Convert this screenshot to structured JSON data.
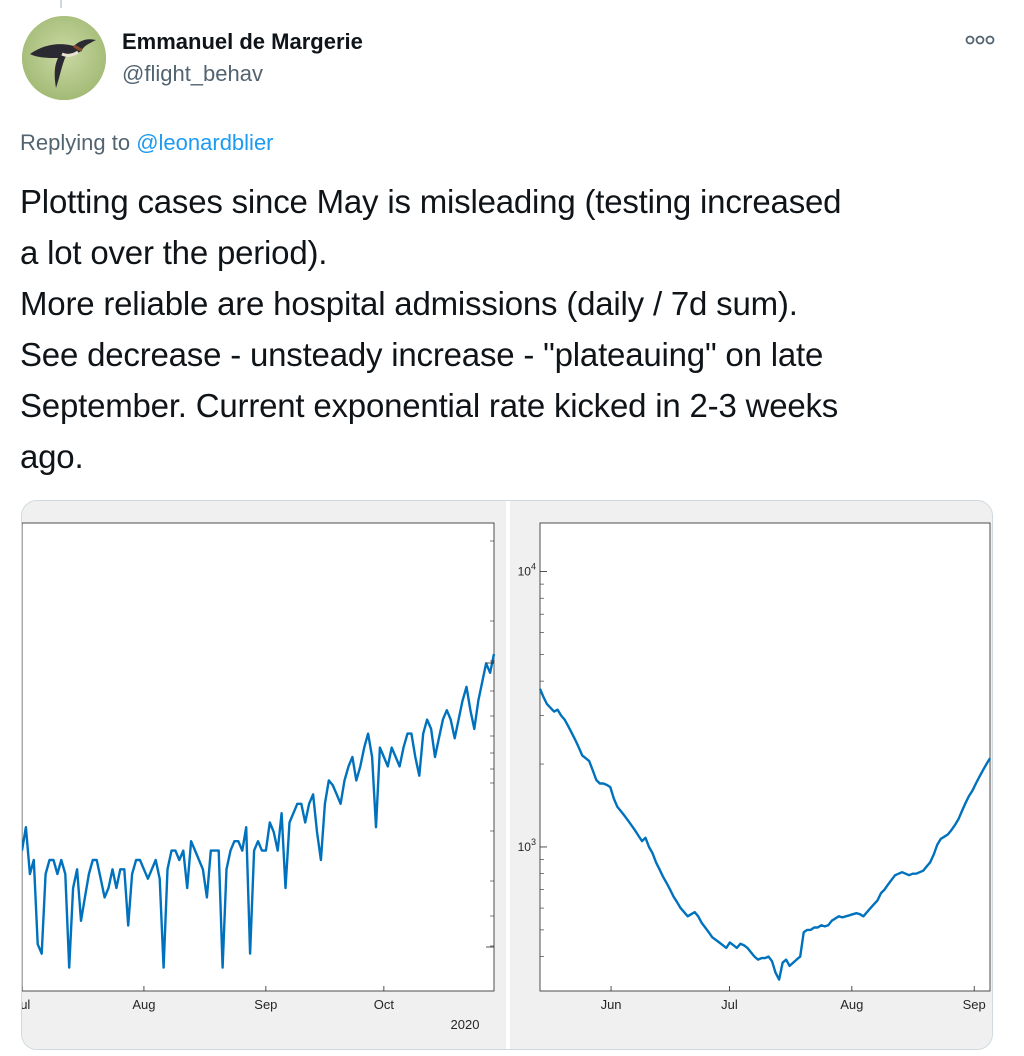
{
  "author": {
    "display_name": "Emmanuel de Margerie",
    "handle": "@flight_behav",
    "avatar_icon": "swallow-bird-avatar"
  },
  "reply": {
    "prefix": "Replying to",
    "mention": "@leonardblier"
  },
  "tweet": {
    "lines": [
      "Plotting cases since May is misleading (testing increased",
      "a lot over the period).",
      "More reliable are hospital admissions (daily / 7d sum).",
      "See decrease - unsteady increase - \"plateauing\" on late",
      "September. Current exponential rate kicked in 2-3 weeks",
      "ago."
    ]
  },
  "more_icon": "more-horizontal-icon",
  "colors": {
    "line": "#0072bd",
    "mention": "#1d9bf0",
    "secondary_text": "#536471",
    "figure_bg": "#f0f0f0"
  },
  "chart_data": [
    {
      "type": "line",
      "title": "",
      "xlabel": "2020",
      "ylabel": "",
      "x_tick_labels": [
        "Jul",
        "Aug",
        "Sep",
        "Oct"
      ],
      "x_tick_days": [
        0,
        31,
        62,
        92
      ],
      "x_range_days": [
        0,
        120
      ],
      "y_range": [
        0,
        100
      ],
      "y_tick_labels": [],
      "grid": false,
      "series": [
        {
          "values": [
            30,
            35,
            25,
            28,
            10,
            8,
            25,
            28,
            28,
            25,
            28,
            25,
            5,
            22,
            26,
            15,
            20,
            25,
            28,
            28,
            24,
            20,
            22,
            26,
            22,
            26,
            26,
            14,
            25,
            28,
            28,
            26,
            24,
            26,
            28,
            24,
            5,
            26,
            30,
            30,
            28,
            30,
            22,
            32,
            30,
            28,
            26,
            20,
            30,
            30,
            30,
            5,
            26,
            30,
            32,
            32,
            30,
            35,
            8,
            30,
            32,
            30,
            30,
            36,
            34,
            30,
            38,
            22,
            36,
            38,
            40,
            40,
            36,
            40,
            42,
            34,
            28,
            40,
            45,
            44,
            42,
            40,
            45,
            48,
            50,
            45,
            48,
            52,
            55,
            50,
            35,
            52,
            50,
            48,
            52,
            50,
            48,
            52,
            55,
            55,
            50,
            46,
            55,
            58,
            56,
            50,
            54,
            58,
            60,
            58,
            54,
            58,
            62,
            65,
            60,
            56,
            62,
            66,
            70,
            68,
            72
          ]
        }
      ]
    },
    {
      "type": "line",
      "title": "",
      "xlabel": "",
      "ylabel": "",
      "y_scale": "log",
      "y_range": [
        300,
        15000
      ],
      "y_tick_labels": [
        "10^3",
        "10^4"
      ],
      "x_tick_labels": [
        "Jun",
        "Jul",
        "Aug",
        "Sep"
      ],
      "x_tick_days": [
        18,
        48,
        79,
        110
      ],
      "x_range_days": [
        0,
        114
      ],
      "grid": false,
      "series": [
        {
          "values": [
            3750,
            3500,
            3300,
            3200,
            3100,
            3150,
            3000,
            2900,
            2750,
            2600,
            2450,
            2300,
            2150,
            2100,
            2050,
            1900,
            1750,
            1700,
            1700,
            1680,
            1650,
            1500,
            1400,
            1350,
            1300,
            1250,
            1200,
            1150,
            1100,
            1050,
            1080,
            1000,
            950,
            880,
            830,
            780,
            740,
            700,
            660,
            630,
            600,
            580,
            560,
            570,
            580,
            560,
            530,
            510,
            490,
            470,
            460,
            450,
            440,
            430,
            450,
            440,
            430,
            445,
            440,
            430,
            415,
            400,
            390,
            395,
            395,
            400,
            385,
            350,
            330,
            380,
            390,
            370,
            380,
            390,
            400,
            490,
            500,
            500,
            510,
            510,
            520,
            515,
            520,
            540,
            550,
            560,
            555,
            560,
            565,
            570,
            575,
            570,
            560,
            580,
            600,
            620,
            640,
            680,
            700,
            730,
            760,
            790,
            800,
            810,
            800,
            790,
            800,
            800,
            810,
            820,
            850,
            880,
            940,
            1020,
            1070,
            1090,
            1110,
            1150,
            1200,
            1260,
            1350,
            1440,
            1530,
            1600,
            1700,
            1800,
            1900,
            2000,
            2100
          ]
        }
      ]
    }
  ]
}
